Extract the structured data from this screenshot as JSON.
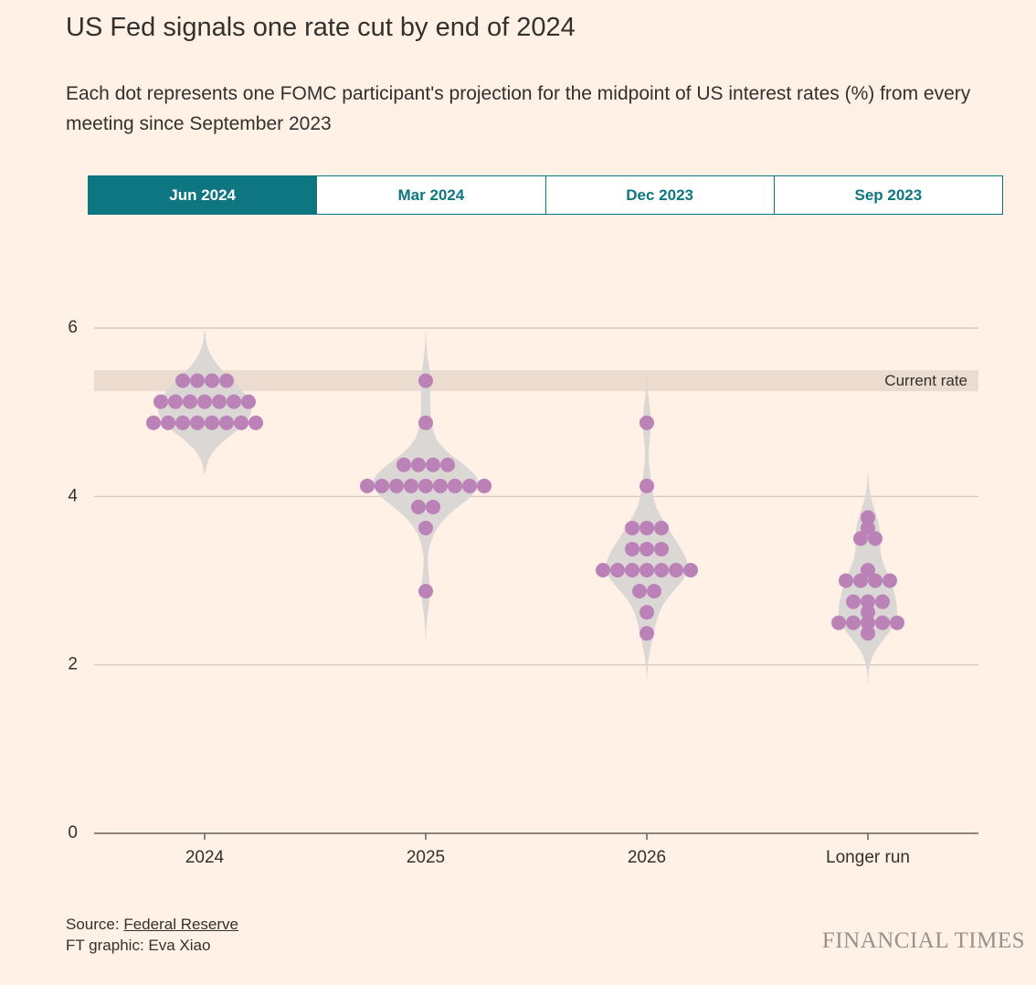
{
  "chart_data": {
    "type": "dot",
    "title": "US Fed signals one rate cut by end of 2024",
    "subtitle": "Each dot represents one FOMC participant's projection for the midpoint of US interest rates (%) from every meeting since September 2023",
    "tabs": [
      "Jun 2024",
      "Mar 2024",
      "Dec 2023",
      "Sep 2023"
    ],
    "active_tab": 0,
    "categories": [
      "2024",
      "2025",
      "2026",
      "Longer run"
    ],
    "values": [
      [
        5.375,
        5.375,
        5.375,
        5.375,
        5.125,
        5.125,
        5.125,
        5.125,
        5.125,
        5.125,
        5.125,
        4.875,
        4.875,
        4.875,
        4.875,
        4.875,
        4.875,
        4.875,
        4.875
      ],
      [
        5.375,
        4.875,
        4.375,
        4.375,
        4.375,
        4.375,
        4.125,
        4.125,
        4.125,
        4.125,
        4.125,
        4.125,
        4.125,
        4.125,
        4.125,
        3.875,
        3.875,
        3.625,
        2.875
      ],
      [
        4.875,
        4.125,
        3.625,
        3.625,
        3.625,
        3.375,
        3.375,
        3.375,
        3.125,
        3.125,
        3.125,
        3.125,
        3.125,
        3.125,
        3.125,
        2.875,
        2.875,
        2.625,
        2.375
      ],
      [
        3.75,
        3.625,
        3.5,
        3.5,
        3.125,
        3.0,
        3.0,
        3.0,
        3.0,
        2.75,
        2.75,
        2.75,
        2.625,
        2.5,
        2.5,
        2.5,
        2.5,
        2.5,
        2.375
      ]
    ],
    "color": "#bb82b8",
    "violin_color": "#dad7d5",
    "current_rate": {
      "label": "Current rate",
      "range": [
        5.25,
        5.5
      ]
    },
    "ylim": [
      0,
      6
    ],
    "yticks": [
      0,
      2,
      4,
      6
    ],
    "grid": true,
    "source_prefix": "Source:",
    "source_link": "Federal Reserve",
    "credit": "FT graphic: Eva Xiao",
    "logo": "FINANCIAL TIMES"
  }
}
